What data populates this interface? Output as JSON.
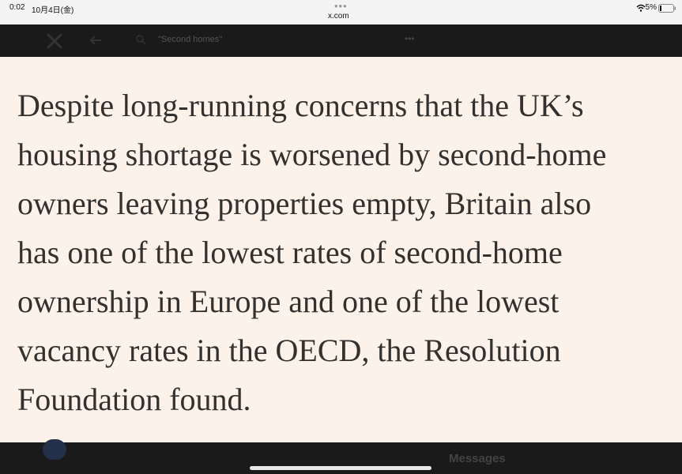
{
  "status": {
    "time": "0:02",
    "date": "10月4日(金)",
    "url": "x.com",
    "battery": "5%"
  },
  "search": {
    "query": "\"Second homes\""
  },
  "article": {
    "lines": [
      "Despite long-running concerns that the UK’s",
      "housing shortage is worsened by second-home",
      "owners leaving properties empty, Britain also",
      "has one of the lowest rates of second-home",
      "ownership in Europe and one of the lowest",
      "vacancy rates in the OECD, the Resolution",
      "Foundation found."
    ]
  },
  "bottom": {
    "messages": "Messages"
  }
}
